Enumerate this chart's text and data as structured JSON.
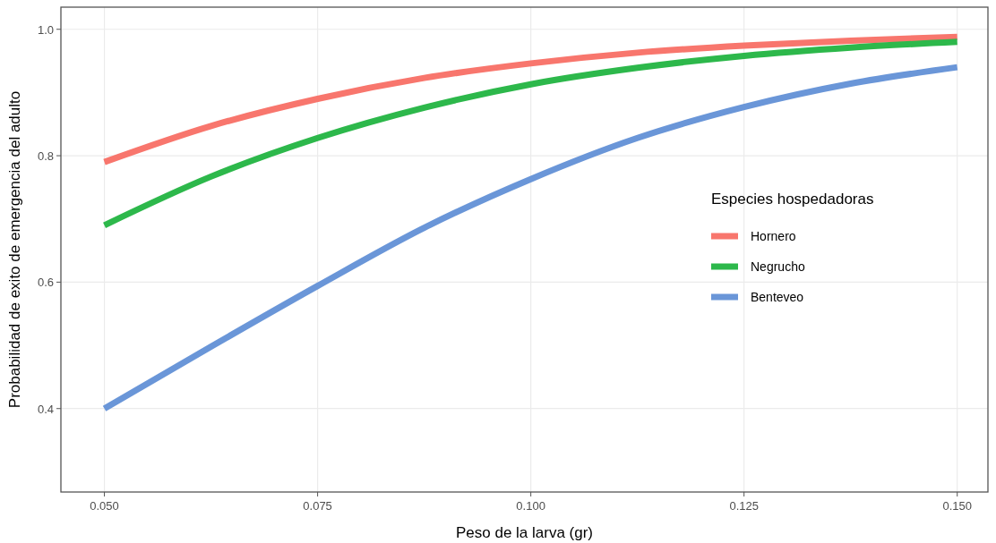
{
  "chart_data": {
    "type": "line",
    "xlabel": "Peso de la larva (gr)",
    "ylabel": "Probabilidad de exito de emergencia del adulto",
    "legend_title": "Especies hospedadoras",
    "x": [
      0.05,
      0.0625,
      0.075,
      0.0875,
      0.1,
      0.1125,
      0.125,
      0.1375,
      0.15
    ],
    "series": [
      {
        "name": "Hornero",
        "color": "#f8766d",
        "values": [
          0.79,
          0.847,
          0.89,
          0.923,
          0.946,
          0.963,
          0.974,
          0.982,
          0.988
        ]
      },
      {
        "name": "Negrucho",
        "color": "#2db84b",
        "values": [
          0.69,
          0.767,
          0.828,
          0.876,
          0.913,
          0.939,
          0.958,
          0.971,
          0.98
        ]
      },
      {
        "name": "Benteveo",
        "color": "#6a96d8",
        "values": [
          0.4,
          0.498,
          0.594,
          0.686,
          0.763,
          0.828,
          0.877,
          0.914,
          0.94
        ]
      }
    ],
    "xlim": [
      0.0449,
      0.1536
    ],
    "xticks": [
      {
        "value": 0.05,
        "label": "0.050"
      },
      {
        "value": 0.075,
        "label": "0.075"
      },
      {
        "value": 0.1,
        "label": "0.100"
      },
      {
        "value": 0.125,
        "label": "0.125"
      },
      {
        "value": 0.15,
        "label": "0.150"
      }
    ],
    "ylim": [
      0.268,
      1.035
    ],
    "yticks": [
      0.4,
      0.6,
      0.8,
      {
        "value": 1.0,
        "label": "1.0"
      }
    ],
    "grid": true,
    "legend": "right",
    "line_style": "solid"
  }
}
